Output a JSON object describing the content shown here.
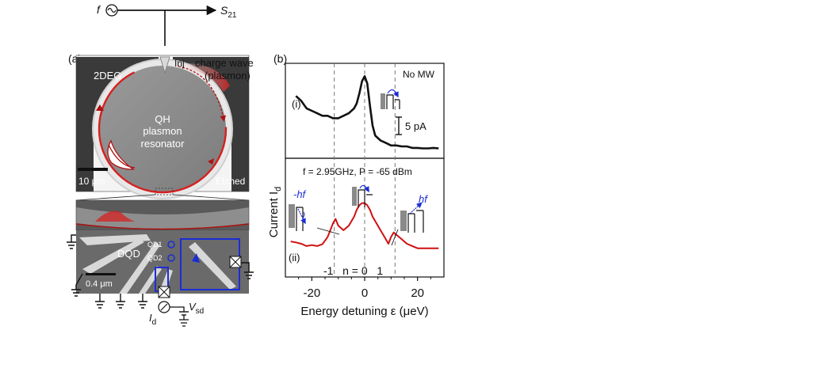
{
  "panel_a": {
    "label": "(a)",
    "source_label": "f",
    "output_label": "S",
    "output_sub": "21",
    "inj_label": "Inj",
    "twodeg_label": "2DEG",
    "charge_wave_label": "charge wave",
    "plasmon_label": "(plasmon)",
    "resonator_line1": "QH",
    "resonator_line2": "plasmon",
    "resonator_line3": "resonator",
    "scale_top": "10 μm",
    "etched_label": "Etched",
    "dqd_label": "DQD",
    "qd1_label": "QD1",
    "qd2_label": "QD2",
    "scale_bottom": "0.4 μm",
    "id_label": "I",
    "id_sub": "d",
    "vsd_label": "V",
    "vsd_sub": "sd"
  },
  "panel_b": {
    "label": "(b)",
    "top_tag": "(i)",
    "top_note": "No MW",
    "scale_bar": "5 pA",
    "bottom_title": "f = 2.95GHz, P = -65 dBm",
    "bottom_tag": "(ii)",
    "minus_hf": "-hf",
    "plus_hf": "hf",
    "n_label": "-1   n = 0   1",
    "ylabel": "Current I",
    "ylabel_sub": "d",
    "xlabel": "Energy detuning ε (μeV)"
  },
  "colors": {
    "plasmon_red": "#d62020",
    "trace_red": "#d01010",
    "blue": "#1a2dd6",
    "sem_gray": "#8a8a8a"
  },
  "chart_data": [
    {
      "type": "line",
      "title": "No MW",
      "series": [
        {
          "x": [
            -26,
            -24,
            -22,
            -20,
            -18,
            -16,
            -14,
            -12,
            -10,
            -8,
            -6,
            -4,
            -3,
            -2,
            -1,
            0,
            1,
            2,
            3,
            4,
            6,
            8,
            10,
            12,
            14,
            16,
            18,
            20,
            22,
            24,
            26,
            28
          ],
          "y": [
            11,
            10,
            8.5,
            8,
            7.5,
            7,
            7,
            6.5,
            6.5,
            7,
            7.5,
            8.5,
            9.5,
            11.5,
            14,
            15,
            13.5,
            9,
            5,
            3,
            2,
            1.5,
            1,
            1,
            0.8,
            0.8,
            0.5,
            0.5,
            0.4,
            0.4,
            0.5,
            0.4
          ]
        }
      ],
      "xlim": [
        -30,
        30
      ]
    },
    {
      "type": "line",
      "title": "f = 2.95GHz, P = -65 dBm",
      "series": [
        {
          "x": [
            -28,
            -26,
            -24,
            -22,
            -20,
            -18,
            -16,
            -14,
            -13,
            -12,
            -11,
            -10,
            -8,
            -6,
            -4,
            -3,
            -2,
            -1,
            0,
            1,
            2,
            3,
            4,
            6,
            8,
            9,
            10,
            11,
            12,
            14,
            16,
            18,
            20,
            22,
            24,
            26,
            28
          ],
          "y": [
            4,
            3.8,
            3.5,
            3,
            3.2,
            3,
            3.4,
            5,
            6.5,
            8,
            9,
            7.5,
            6.5,
            7.5,
            9.5,
            11,
            12,
            12.5,
            12.5,
            12,
            11,
            9.5,
            8.5,
            6.5,
            4.5,
            3.5,
            5,
            6,
            5.5,
            4.5,
            3.5,
            3,
            2.5,
            2.5,
            2.5,
            2.5,
            2.5
          ]
        }
      ],
      "xlim": [
        -30,
        30
      ],
      "x_ticks": [
        -20,
        0,
        20
      ],
      "xlabel": "Energy detuning ε (μeV)",
      "ylabel": "Current I_d",
      "dashed_lines_x": [
        -11.5,
        0,
        11.5
      ]
    }
  ]
}
